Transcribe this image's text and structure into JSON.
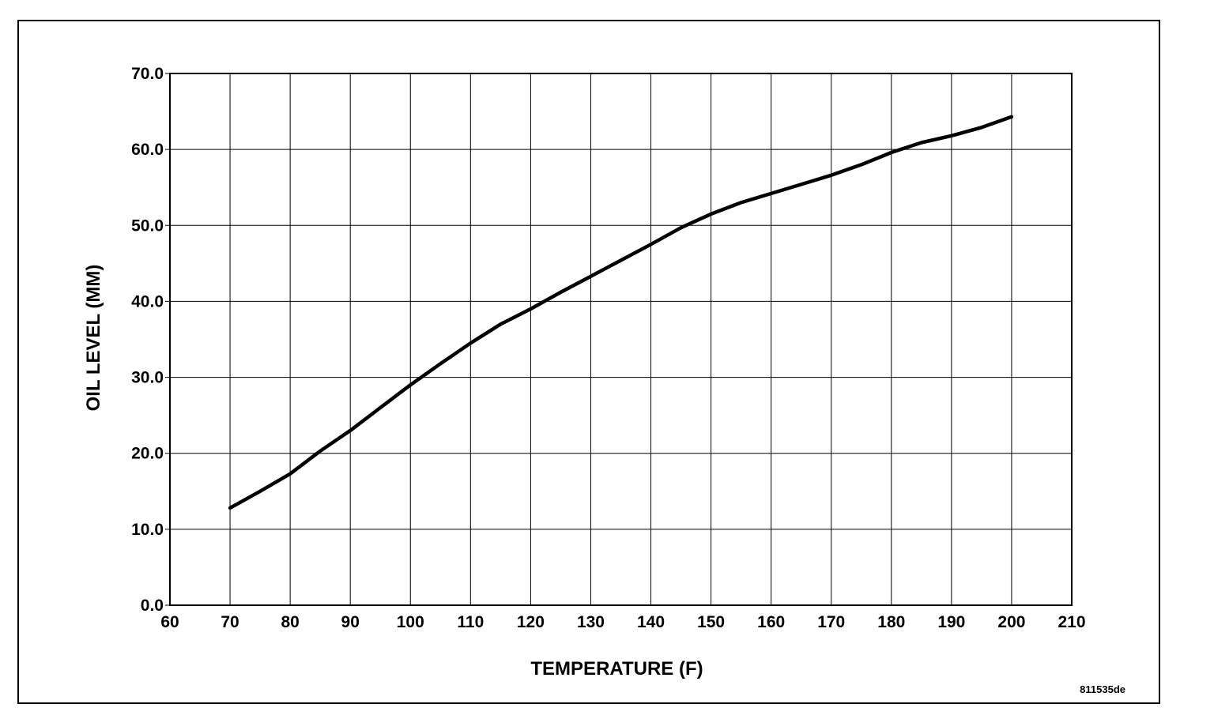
{
  "chart_data": {
    "type": "line",
    "title": "",
    "xlabel": "TEMPERATURE  (F)",
    "ylabel": "OIL LEVEL (MM)",
    "xlim": [
      60,
      210
    ],
    "ylim": [
      0,
      70
    ],
    "x_ticks": [
      60,
      70,
      80,
      90,
      100,
      110,
      120,
      130,
      140,
      150,
      160,
      170,
      180,
      190,
      200,
      210
    ],
    "x_tick_labels": [
      "60",
      "70",
      "80",
      "90",
      "100",
      "110",
      "120",
      "130",
      "140",
      "150",
      "160",
      "170",
      "180",
      "190",
      "200",
      "210"
    ],
    "y_ticks": [
      0,
      10,
      20,
      30,
      40,
      50,
      60,
      70
    ],
    "y_tick_labels": [
      "0.0",
      "10.0",
      "20.0",
      "30.0",
      "40.0",
      "50.0",
      "60.0",
      "70.0"
    ],
    "grid": true,
    "legend": "none",
    "series": [
      {
        "color": "#000000",
        "x": [
          70,
          75,
          80,
          85,
          90,
          95,
          100,
          105,
          110,
          115,
          120,
          125,
          130,
          135,
          140,
          145,
          150,
          155,
          160,
          165,
          170,
          175,
          180,
          185,
          190,
          195,
          200
        ],
        "y": [
          12.8,
          15.0,
          17.3,
          20.3,
          23.0,
          26.0,
          29.0,
          31.8,
          34.5,
          37.0,
          39.0,
          41.2,
          43.3,
          45.4,
          47.5,
          49.7,
          51.5,
          53.0,
          54.2,
          55.4,
          56.6,
          58.0,
          59.6,
          60.9,
          61.8,
          62.9,
          64.3
        ]
      }
    ],
    "figure_code": "811535de"
  }
}
